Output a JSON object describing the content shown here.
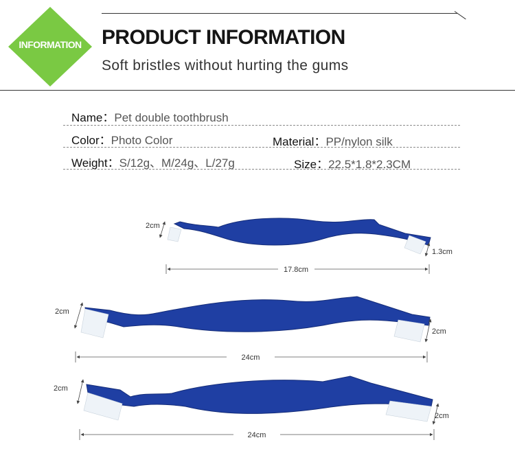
{
  "header": {
    "badge": "INFORMATION",
    "title": "PRODUCT INFORMATION",
    "subtitle": "Soft bristles without hurting the gums",
    "accent_color": "#7ac943"
  },
  "specs": {
    "name_label": "Name：",
    "name_value": "Pet double toothbrush",
    "color_label": "Color：",
    "color_value": "Photo Color",
    "material_label": "Material：",
    "material_value": "PP/nylon silk",
    "weight_label": "Weight：",
    "weight_value": "S/12g、M/24g、L/27g",
    "size_label": "Size：",
    "size_value": "22.5*1.8*2.3CM"
  },
  "brushes": [
    {
      "length": "17.8cm",
      "head_left": "2cm",
      "head_right": "1.3cm"
    },
    {
      "length": "24cm",
      "head_left": "2cm",
      "head_right": "2cm"
    },
    {
      "length": "24cm",
      "head_left": "2cm",
      "head_right": "2cm"
    }
  ],
  "brush_color": "#1f3fa3"
}
